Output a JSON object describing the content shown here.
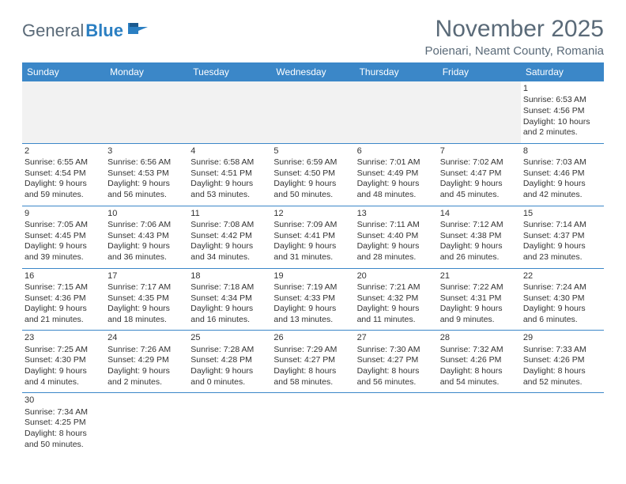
{
  "logo": {
    "part1": "General",
    "part2": "Blue"
  },
  "title": "November 2025",
  "location": "Poienari, Neamt County, Romania",
  "dayHeaders": [
    "Sunday",
    "Monday",
    "Tuesday",
    "Wednesday",
    "Thursday",
    "Friday",
    "Saturday"
  ],
  "colors": {
    "headerBg": "#3b87c8",
    "headerText": "#ffffff",
    "weekBorder": "#3b87c8",
    "blankBg": "#f2f2f2",
    "titleText": "#5a6a78",
    "logoBlue": "#2b7fc2",
    "cellText": "#333333"
  },
  "weeks": [
    [
      null,
      null,
      null,
      null,
      null,
      null,
      {
        "n": "1",
        "sr": "6:53 AM",
        "ss": "4:56 PM",
        "dl": "10 hours and 2 minutes."
      }
    ],
    [
      {
        "n": "2",
        "sr": "6:55 AM",
        "ss": "4:54 PM",
        "dl": "9 hours and 59 minutes."
      },
      {
        "n": "3",
        "sr": "6:56 AM",
        "ss": "4:53 PM",
        "dl": "9 hours and 56 minutes."
      },
      {
        "n": "4",
        "sr": "6:58 AM",
        "ss": "4:51 PM",
        "dl": "9 hours and 53 minutes."
      },
      {
        "n": "5",
        "sr": "6:59 AM",
        "ss": "4:50 PM",
        "dl": "9 hours and 50 minutes."
      },
      {
        "n": "6",
        "sr": "7:01 AM",
        "ss": "4:49 PM",
        "dl": "9 hours and 48 minutes."
      },
      {
        "n": "7",
        "sr": "7:02 AM",
        "ss": "4:47 PM",
        "dl": "9 hours and 45 minutes."
      },
      {
        "n": "8",
        "sr": "7:03 AM",
        "ss": "4:46 PM",
        "dl": "9 hours and 42 minutes."
      }
    ],
    [
      {
        "n": "9",
        "sr": "7:05 AM",
        "ss": "4:45 PM",
        "dl": "9 hours and 39 minutes."
      },
      {
        "n": "10",
        "sr": "7:06 AM",
        "ss": "4:43 PM",
        "dl": "9 hours and 36 minutes."
      },
      {
        "n": "11",
        "sr": "7:08 AM",
        "ss": "4:42 PM",
        "dl": "9 hours and 34 minutes."
      },
      {
        "n": "12",
        "sr": "7:09 AM",
        "ss": "4:41 PM",
        "dl": "9 hours and 31 minutes."
      },
      {
        "n": "13",
        "sr": "7:11 AM",
        "ss": "4:40 PM",
        "dl": "9 hours and 28 minutes."
      },
      {
        "n": "14",
        "sr": "7:12 AM",
        "ss": "4:38 PM",
        "dl": "9 hours and 26 minutes."
      },
      {
        "n": "15",
        "sr": "7:14 AM",
        "ss": "4:37 PM",
        "dl": "9 hours and 23 minutes."
      }
    ],
    [
      {
        "n": "16",
        "sr": "7:15 AM",
        "ss": "4:36 PM",
        "dl": "9 hours and 21 minutes."
      },
      {
        "n": "17",
        "sr": "7:17 AM",
        "ss": "4:35 PM",
        "dl": "9 hours and 18 minutes."
      },
      {
        "n": "18",
        "sr": "7:18 AM",
        "ss": "4:34 PM",
        "dl": "9 hours and 16 minutes."
      },
      {
        "n": "19",
        "sr": "7:19 AM",
        "ss": "4:33 PM",
        "dl": "9 hours and 13 minutes."
      },
      {
        "n": "20",
        "sr": "7:21 AM",
        "ss": "4:32 PM",
        "dl": "9 hours and 11 minutes."
      },
      {
        "n": "21",
        "sr": "7:22 AM",
        "ss": "4:31 PM",
        "dl": "9 hours and 9 minutes."
      },
      {
        "n": "22",
        "sr": "7:24 AM",
        "ss": "4:30 PM",
        "dl": "9 hours and 6 minutes."
      }
    ],
    [
      {
        "n": "23",
        "sr": "7:25 AM",
        "ss": "4:30 PM",
        "dl": "9 hours and 4 minutes."
      },
      {
        "n": "24",
        "sr": "7:26 AM",
        "ss": "4:29 PM",
        "dl": "9 hours and 2 minutes."
      },
      {
        "n": "25",
        "sr": "7:28 AM",
        "ss": "4:28 PM",
        "dl": "9 hours and 0 minutes."
      },
      {
        "n": "26",
        "sr": "7:29 AM",
        "ss": "4:27 PM",
        "dl": "8 hours and 58 minutes."
      },
      {
        "n": "27",
        "sr": "7:30 AM",
        "ss": "4:27 PM",
        "dl": "8 hours and 56 minutes."
      },
      {
        "n": "28",
        "sr": "7:32 AM",
        "ss": "4:26 PM",
        "dl": "8 hours and 54 minutes."
      },
      {
        "n": "29",
        "sr": "7:33 AM",
        "ss": "4:26 PM",
        "dl": "8 hours and 52 minutes."
      }
    ],
    [
      {
        "n": "30",
        "sr": "7:34 AM",
        "ss": "4:25 PM",
        "dl": "8 hours and 50 minutes."
      },
      null,
      null,
      null,
      null,
      null,
      null
    ]
  ]
}
